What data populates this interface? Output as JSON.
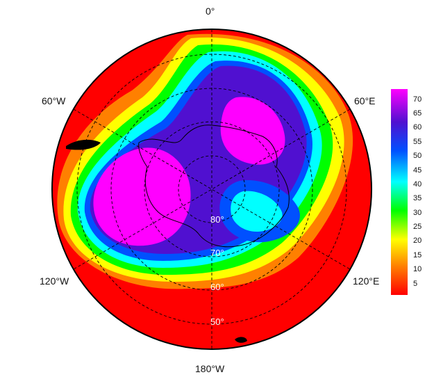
{
  "map": {
    "projection": "south-polar-stereographic",
    "longitude_labels": {
      "top": "0°",
      "upper_left": "60°W",
      "upper_right": "60°E",
      "lower_left": "120°W",
      "lower_right": "120°E",
      "bottom": "180°W"
    },
    "latitude_labels": [
      "80°",
      "70°",
      "60°",
      "50°"
    ],
    "latitude_circles": [
      80,
      70,
      60,
      50
    ],
    "meridian_step_deg": 60,
    "graticule_style": "dashed",
    "colormap": [
      "#ff0000",
      "#ff8000",
      "#ffff00",
      "#00ff00",
      "#00ffff",
      "#0050ff",
      "#5010d0",
      "#ff00ff"
    ]
  },
  "colorbar": {
    "ticks": [
      "70",
      "65",
      "60",
      "55",
      "50",
      "45",
      "40",
      "35",
      "30",
      "25",
      "20",
      "15",
      "10",
      "5"
    ],
    "min": 0,
    "max": 74
  }
}
